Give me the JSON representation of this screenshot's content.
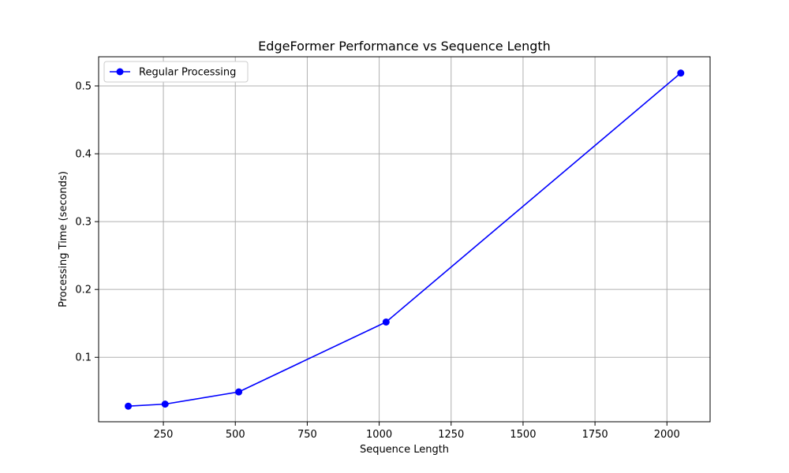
{
  "chart_data": {
    "type": "line",
    "title": "EdgeFormer Performance vs Sequence Length",
    "xlabel": "Sequence Length",
    "ylabel": "Processing Time (seconds)",
    "xlim": [
      25,
      2150
    ],
    "ylim": [
      0.005,
      0.543
    ],
    "xticks": [
      250,
      500,
      750,
      1000,
      1250,
      1500,
      1750,
      2000
    ],
    "xtick_labels": [
      "250",
      "500",
      "750",
      "1000",
      "1250",
      "1500",
      "1750",
      "2000"
    ],
    "yticks": [
      0.1,
      0.2,
      0.3,
      0.4,
      0.5
    ],
    "ytick_labels": [
      "0.1",
      "0.2",
      "0.3",
      "0.4",
      "0.5"
    ],
    "grid": true,
    "legend_position": "top-left",
    "series": [
      {
        "name": "Regular Processing",
        "color": "#0000ff",
        "marker": "circle",
        "x": [
          128,
          256,
          512,
          1024,
          2048
        ],
        "y": [
          0.028,
          0.031,
          0.049,
          0.152,
          0.519
        ]
      }
    ]
  }
}
